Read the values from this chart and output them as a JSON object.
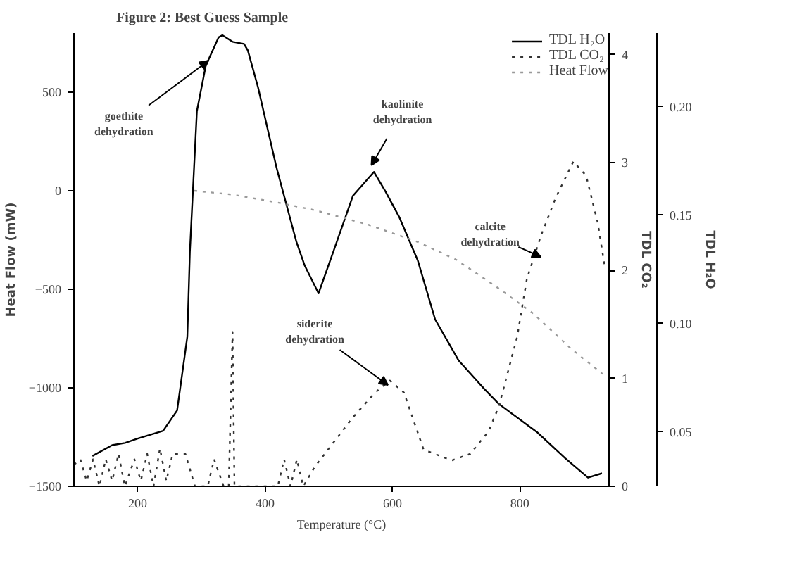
{
  "chart_data": {
    "type": "line",
    "title": "Figure 2: Best Guess Sample",
    "xlabel": "Temperature (°C)",
    "ylabel": "Heat Flow (mW)",
    "y2label": "TDL CO₂",
    "y3label": "TDL H₂O",
    "xlim": [
      100,
      940
    ],
    "xticks": [
      200,
      400,
      600,
      800
    ],
    "ylim": [
      -1500,
      800
    ],
    "yticks": [
      -1500,
      -1000,
      -500,
      0,
      500
    ],
    "y2lim": [
      0,
      4.2
    ],
    "y2ticks": [
      0,
      1,
      2,
      3,
      4
    ],
    "y3lim": [
      0.025,
      0.234
    ],
    "y3ticks": [
      0.05,
      {
        "value": 0.1,
        "label": "0.10"
      },
      0.15,
      {
        "value": 0.2,
        "label": "0.20"
      }
    ],
    "grid": false,
    "legend": "top right",
    "marker": "none",
    "series": [
      {
        "name": "TDL H₂O",
        "color": "#000000",
        "line_style": "solid",
        "axis": "y3",
        "x": [
          129,
          160,
          180,
          200,
          240,
          262,
          278,
          282,
          293,
          307,
          327,
          333,
          349,
          367,
          373,
          389,
          418,
          449,
          462,
          484,
          507,
          538,
          571,
          589,
          611,
          640,
          667,
          704,
          744,
          767,
          827,
          871,
          907,
          929
        ],
        "values": [
          0.039,
          0.044,
          0.045,
          0.047,
          0.0506,
          0.06,
          0.094,
          0.133,
          0.198,
          0.219,
          0.232,
          0.233,
          0.23,
          0.229,
          0.226,
          0.209,
          0.172,
          0.138,
          0.127,
          0.114,
          0.133,
          0.159,
          0.17,
          0.161,
          0.149,
          0.129,
          0.102,
          0.083,
          0.07,
          0.063,
          0.05,
          0.038,
          0.029,
          0.031
        ]
      },
      {
        "name": "TDL CO₂",
        "color": "#333333",
        "line_style": "dotted",
        "axis": "y2",
        "x": [
          100,
          110,
          120,
          130,
          140,
          150,
          160,
          170,
          180,
          195,
          205,
          215,
          225,
          235,
          245,
          255,
          275,
          290,
          310,
          320,
          335,
          343,
          349,
          352,
          355,
          420,
          430,
          440,
          450,
          460,
          478,
          538,
          573,
          596,
          618,
          649,
          693,
          722,
          751,
          767,
          796,
          811,
          833,
          856,
          884,
          904,
          922,
          933
        ],
        "values": [
          0.2,
          0.25,
          0.05,
          0.25,
          0.0,
          0.25,
          0.05,
          0.3,
          0.0,
          0.25,
          0.05,
          0.3,
          0.0,
          0.35,
          0.05,
          0.3,
          0.3,
          0.0,
          0.0,
          0.25,
          0.0,
          0.0,
          1.43,
          0.0,
          0.0,
          0.0,
          0.25,
          0.0,
          0.25,
          0.0,
          0.18,
          0.64,
          0.87,
          0.98,
          0.87,
          0.34,
          0.24,
          0.3,
          0.51,
          0.74,
          1.39,
          1.92,
          2.32,
          2.67,
          3.01,
          2.88,
          2.45,
          2.05
        ]
      },
      {
        "name": "Heat Flow",
        "color": "#999999",
        "line_style": "dotted",
        "x": [
          289,
          350,
          420,
          480,
          560,
          640,
          700,
          760,
          820,
          880,
          930
        ],
        "values": [
          0,
          -20,
          -60,
          -100,
          -170,
          -260,
          -350,
          -480,
          -620,
          -800,
          -930
        ]
      }
    ],
    "annotations": [
      {
        "text": "goethite\ndehydration",
        "x": 311,
        "y": 660
      },
      {
        "text": "kaolinite\ndehydration",
        "x": 567,
        "y": 129
      },
      {
        "text": "siderite\ndehydration",
        "x": 593,
        "y": -986
      },
      {
        "text": "calcite\ndehydration",
        "x": 833,
        "y": -336
      }
    ]
  }
}
